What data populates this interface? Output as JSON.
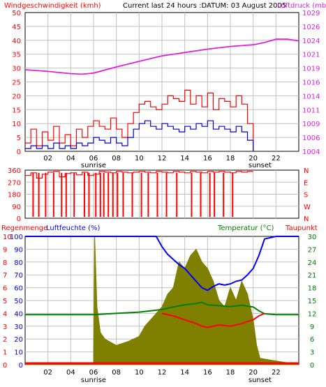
{
  "header": {
    "left_label": "Windgeschwindigkeit (kmh)",
    "center_label": "Current last 24 hours :DATUM: 03 August 2005",
    "right_label": "Luftdruck (mb)"
  },
  "colors": {
    "background": "#ffffff",
    "frame": "#000000",
    "grid": "#c0c0c0",
    "wind_gust": "#ff0000",
    "wind_avg": "#0000cc",
    "pressure": "#e020e0",
    "direction": "#ff0000",
    "rain": "#808000",
    "humidity": "#0000ff",
    "temperature": "#008000",
    "dewpoint": "#ff0000",
    "rain_axis": "#ff0000",
    "humidity_axis": "#0000ff",
    "temperature_axis": "#008000"
  },
  "x_ticks": [
    "02",
    "04",
    "06",
    "08",
    "10",
    "12",
    "14",
    "16",
    "18",
    "20",
    "22"
  ],
  "sun": {
    "sunrise_label": "sunrise",
    "sunset_label": "sunset",
    "sunrise_hour": 6.0,
    "sunset_hour": 20.6
  },
  "chart_data": [
    {
      "type": "line",
      "name": "wind-pressure",
      "title": "Current last 24 hours :DATUM: 03 August 2005",
      "ylabel_left": "Windgeschwindigkeit (kmh)",
      "ylabel_right": "Luftdruck (mb)",
      "xlim": [
        0,
        24
      ],
      "ylim_left": [
        0,
        50
      ],
      "ylim_right": [
        1004,
        1029
      ],
      "yticks_left": [
        "0",
        "5",
        "10",
        "15",
        "20",
        "25",
        "30",
        "35",
        "40",
        "45",
        "50"
      ],
      "yticks_right": [
        "1004",
        "1006",
        "1009",
        "1011",
        "1014",
        "1016",
        "1019",
        "1021",
        "1024",
        "1026",
        "1029"
      ],
      "grid": true,
      "series": [
        {
          "key": "gust",
          "x": [
            0.0,
            0.5,
            1.0,
            1.5,
            2.0,
            2.5,
            3.0,
            3.5,
            4.0,
            4.5,
            5.0,
            5.5,
            6.0,
            6.5,
            7.0,
            7.5,
            8.0,
            8.5,
            9.0,
            9.5,
            10.0,
            10.5,
            11.0,
            11.5,
            12.0,
            12.5,
            13.0,
            13.5,
            14.0,
            14.5,
            15.0,
            15.5,
            16.0,
            16.5,
            17.0,
            17.5,
            18.0,
            18.5,
            19.0,
            19.5,
            20.0
          ],
          "values": [
            3,
            8,
            2,
            7,
            4,
            9,
            3,
            6,
            2,
            8,
            5,
            9,
            11,
            9,
            8,
            12,
            8,
            5,
            10,
            14,
            17,
            18,
            16,
            15,
            17,
            20,
            19,
            18,
            22,
            17,
            20,
            16,
            21,
            15,
            19,
            18,
            16,
            20,
            17,
            10,
            0
          ]
        },
        {
          "key": "avg",
          "x": [
            0.0,
            0.5,
            1.0,
            1.5,
            2.0,
            2.5,
            3.0,
            3.5,
            4.0,
            4.5,
            5.0,
            5.5,
            6.0,
            6.5,
            7.0,
            7.5,
            8.0,
            8.5,
            9.0,
            9.5,
            10.0,
            10.5,
            11.0,
            11.5,
            12.0,
            12.5,
            13.0,
            13.5,
            14.0,
            14.5,
            15.0,
            15.5,
            16.0,
            16.5,
            17.0,
            17.5,
            18.0,
            18.5,
            19.0,
            19.5,
            20.0
          ],
          "values": [
            1,
            2,
            1,
            2,
            1,
            3,
            1,
            2,
            1,
            3,
            2,
            3,
            5,
            4,
            3,
            5,
            3,
            2,
            5,
            8,
            10,
            11,
            9,
            8,
            10,
            9,
            8,
            7,
            9,
            8,
            10,
            9,
            11,
            8,
            9,
            8,
            7,
            9,
            7,
            4,
            0
          ]
        },
        {
          "key": "pressure",
          "x": [
            0,
            2,
            4,
            5,
            6,
            8,
            10,
            12,
            14,
            16,
            18,
            20,
            21,
            22,
            23,
            24
          ],
          "values": [
            1018.7,
            1018.4,
            1018.0,
            1017.9,
            1018.1,
            1019.2,
            1020.2,
            1021.2,
            1021.8,
            1022.4,
            1022.9,
            1023.2,
            1023.6,
            1024.2,
            1024.2,
            1023.9
          ]
        }
      ]
    },
    {
      "type": "line",
      "name": "wind-direction",
      "ylabel_right": "N W S E N",
      "xlim": [
        0,
        24
      ],
      "ylim": [
        0,
        360
      ],
      "yticks_left": [
        "0",
        "90",
        "180",
        "270",
        "360"
      ],
      "yticks_right": [
        "N",
        "W",
        "S",
        "E",
        "N"
      ],
      "grid": true,
      "series": [
        {
          "key": "direction",
          "x": [
            0.0,
            0.5,
            1.0,
            1.5,
            2.0,
            2.5,
            3.0,
            3.5,
            4.0,
            4.5,
            5.0,
            5.5,
            6.0,
            6.5,
            7.0,
            7.5,
            8.0,
            8.5,
            9.0,
            9.5,
            10.0,
            10.5,
            11.0,
            11.5,
            12.0,
            12.5,
            13.0,
            13.5,
            14.0,
            14.5,
            15.0,
            15.5,
            16.0,
            16.5,
            17.0,
            17.5,
            18.0,
            18.5,
            19.0,
            19.5,
            20.0
          ],
          "values": [
            320,
            340,
            300,
            330,
            345,
            350,
            310,
            335,
            340,
            325,
            345,
            320,
            330,
            350,
            345,
            340,
            350,
            345,
            340,
            345,
            350,
            345,
            340,
            350,
            345,
            340,
            350,
            345,
            340,
            350,
            345,
            340,
            350,
            345,
            350,
            345,
            340,
            350,
            345,
            350,
            350
          ],
          "dropouts": [
            0.7,
            1.2,
            1.8,
            2.5,
            3.2,
            3.6,
            4.3,
            5.2,
            5.6,
            6.2,
            6.6,
            6.9,
            7.3,
            7.7,
            8.1,
            8.6,
            9.4,
            10.2,
            10.8,
            11.6,
            12.4,
            13.3,
            14.6,
            15.4,
            16.2,
            16.6,
            17.4,
            18.2
          ]
        }
      ]
    },
    {
      "type": "line",
      "name": "humidity-temperature-rain",
      "ylabel_left": "Regenmenge Luftfeuchte (%)",
      "ylabel_right": "Temperatur (°C) Taupunkt",
      "legend": [
        "Regenmenge",
        "Luftfeuchte (%)",
        "Temperatur (°C)",
        "Taupunkt"
      ],
      "xlim": [
        0,
        24
      ],
      "ylim_humidity": [
        0,
        100
      ],
      "ylim_temperature": [
        0,
        30
      ],
      "yticks_rain": [
        "0",
        "1",
        "2",
        "3",
        "4",
        "5",
        "6",
        "7",
        "8",
        "9",
        "10"
      ],
      "yticks_humidity": [
        "0",
        "10",
        "20",
        "30",
        "40",
        "50",
        "60",
        "70",
        "80",
        "90",
        "100"
      ],
      "yticks_temperature": [
        "0",
        "3",
        "6",
        "9",
        "12",
        "15",
        "18",
        "21",
        "24",
        "27",
        "30"
      ],
      "grid": true,
      "series": [
        {
          "key": "humidity",
          "x": [
            0,
            6,
            8,
            10,
            11.5,
            12.0,
            12.5,
            13.0,
            13.5,
            14.0,
            14.5,
            15.0,
            15.5,
            16.0,
            16.5,
            17.0,
            17.5,
            18.0,
            18.5,
            19.0,
            19.5,
            20.0,
            20.5,
            21.0,
            22,
            24
          ],
          "values": [
            100,
            100,
            100,
            100,
            100,
            92,
            86,
            82,
            78,
            75,
            70,
            65,
            60,
            58,
            61,
            63,
            62,
            63,
            65,
            66,
            70,
            75,
            85,
            98,
            100,
            100
          ]
        },
        {
          "key": "temperature",
          "x": [
            0,
            2,
            4,
            6,
            8,
            10,
            12,
            13,
            14,
            15,
            15.5,
            16,
            17,
            18,
            19,
            20,
            20.5,
            21,
            22,
            24
          ],
          "values": [
            11.7,
            11.7,
            11.7,
            11.7,
            12.0,
            12.3,
            12.9,
            13.5,
            14.0,
            14.3,
            14.6,
            14.0,
            13.8,
            13.6,
            13.9,
            13.5,
            12.6,
            11.9,
            11.7,
            11.7
          ]
        },
        {
          "key": "dewpoint",
          "x": [
            12,
            13,
            14,
            15,
            15.5,
            16,
            17,
            18,
            19,
            19.5,
            20,
            20.5,
            21
          ],
          "values": [
            12.0,
            11.4,
            10.5,
            9.6,
            9.0,
            8.7,
            9.3,
            9.0,
            9.6,
            10.1,
            10.5,
            11.4,
            12.0
          ]
        },
        {
          "key": "rain",
          "x": [
            0,
            6.0,
            6.1,
            6.3,
            6.6,
            7.0,
            8.0,
            9.0,
            10.0,
            10.5,
            11.0,
            11.5,
            12.0,
            12.5,
            13.0,
            13.5,
            14.0,
            14.5,
            15.0,
            15.5,
            16.0,
            16.5,
            17.0,
            17.5,
            18.0,
            18.5,
            19.0,
            19.5,
            20.0,
            20.3,
            20.6,
            24
          ],
          "values": [
            0,
            0,
            10,
            4.5,
            2.5,
            2.0,
            1.5,
            1.8,
            2.2,
            3.0,
            3.5,
            4.0,
            4.5,
            5.5,
            6.0,
            8.0,
            7.5,
            8.5,
            9.0,
            8.0,
            7.5,
            6.5,
            5.0,
            4.5,
            6.0,
            5.0,
            6.5,
            5.5,
            3.5,
            1.5,
            0.5,
            0
          ]
        }
      ]
    }
  ]
}
